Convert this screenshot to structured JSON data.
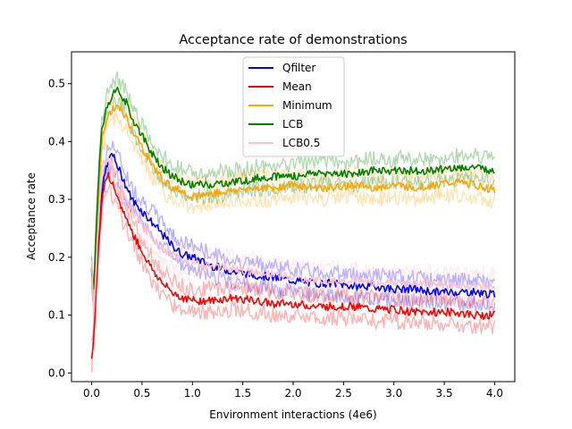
{
  "chart_data": {
    "type": "line",
    "title": "Acceptance rate of demonstrations",
    "xlabel": "Environment interactions (4e6)",
    "ylabel": "Acceptance rate",
    "xlim": [
      -0.2,
      4.2
    ],
    "ylim": [
      -0.015,
      0.555
    ],
    "x_ticks": [
      0.0,
      0.5,
      1.0,
      1.5,
      2.0,
      2.5,
      3.0,
      3.5,
      4.0
    ],
    "x_tick_labels": [
      "0.0",
      "0.5",
      "1.0",
      "1.5",
      "2.0",
      "2.5",
      "3.0",
      "3.5",
      "4.0"
    ],
    "y_ticks": [
      0.0,
      0.1,
      0.2,
      0.3,
      0.4,
      0.5
    ],
    "y_tick_labels": [
      "0.0",
      "0.1",
      "0.2",
      "0.3",
      "0.4",
      "0.5"
    ],
    "grid": false,
    "legend_position": "top-center",
    "x": [
      0.0,
      0.02,
      0.05,
      0.08,
      0.1,
      0.15,
      0.2,
      0.25,
      0.3,
      0.35,
      0.4,
      0.5,
      0.6,
      0.7,
      0.8,
      0.9,
      1.0,
      1.2,
      1.4,
      1.6,
      1.8,
      2.0,
      2.2,
      2.4,
      2.6,
      2.8,
      3.0,
      3.2,
      3.4,
      3.6,
      3.8,
      4.0
    ],
    "series": [
      {
        "name": "Qfilter",
        "color": "#0000ff",
        "values": [
          0.18,
          0.12,
          0.2,
          0.27,
          0.31,
          0.36,
          0.38,
          0.36,
          0.34,
          0.32,
          0.3,
          0.28,
          0.26,
          0.24,
          0.22,
          0.205,
          0.2,
          0.185,
          0.175,
          0.17,
          0.165,
          0.16,
          0.155,
          0.155,
          0.15,
          0.15,
          0.145,
          0.145,
          0.14,
          0.14,
          0.14,
          0.135
        ]
      },
      {
        "name": "Mean",
        "color": "#ff0000",
        "values": [
          0.03,
          0.06,
          0.16,
          0.25,
          0.3,
          0.345,
          0.33,
          0.3,
          0.285,
          0.265,
          0.245,
          0.21,
          0.18,
          0.155,
          0.14,
          0.13,
          0.125,
          0.125,
          0.13,
          0.125,
          0.12,
          0.12,
          0.115,
          0.115,
          0.115,
          0.11,
          0.11,
          0.105,
          0.105,
          0.105,
          0.1,
          0.1
        ]
      },
      {
        "name": "Minimum",
        "color": "#ffa500",
        "values": [
          0.17,
          0.12,
          0.25,
          0.34,
          0.4,
          0.44,
          0.455,
          0.46,
          0.45,
          0.44,
          0.42,
          0.39,
          0.36,
          0.335,
          0.32,
          0.315,
          0.305,
          0.31,
          0.315,
          0.32,
          0.32,
          0.325,
          0.32,
          0.32,
          0.325,
          0.32,
          0.325,
          0.32,
          0.325,
          0.33,
          0.325,
          0.315
        ]
      },
      {
        "name": "LCB",
        "color": "#008000",
        "values": [
          0.19,
          0.13,
          0.27,
          0.37,
          0.42,
          0.46,
          0.48,
          0.49,
          0.48,
          0.465,
          0.44,
          0.41,
          0.38,
          0.355,
          0.34,
          0.33,
          0.325,
          0.325,
          0.33,
          0.335,
          0.34,
          0.34,
          0.345,
          0.345,
          0.345,
          0.35,
          0.35,
          0.35,
          0.35,
          0.355,
          0.355,
          0.35
        ]
      },
      {
        "name": "LCB0.5",
        "color": "#ffc0cb",
        "values": [
          0.2,
          0.1,
          0.2,
          0.3,
          0.36,
          0.37,
          0.36,
          0.34,
          0.32,
          0.3,
          0.28,
          0.255,
          0.235,
          0.215,
          0.205,
          0.195,
          0.19,
          0.185,
          0.18,
          0.175,
          0.17,
          0.165,
          0.16,
          0.16,
          0.16,
          0.155,
          0.155,
          0.155,
          0.155,
          0.15,
          0.15,
          0.15
        ]
      }
    ]
  }
}
